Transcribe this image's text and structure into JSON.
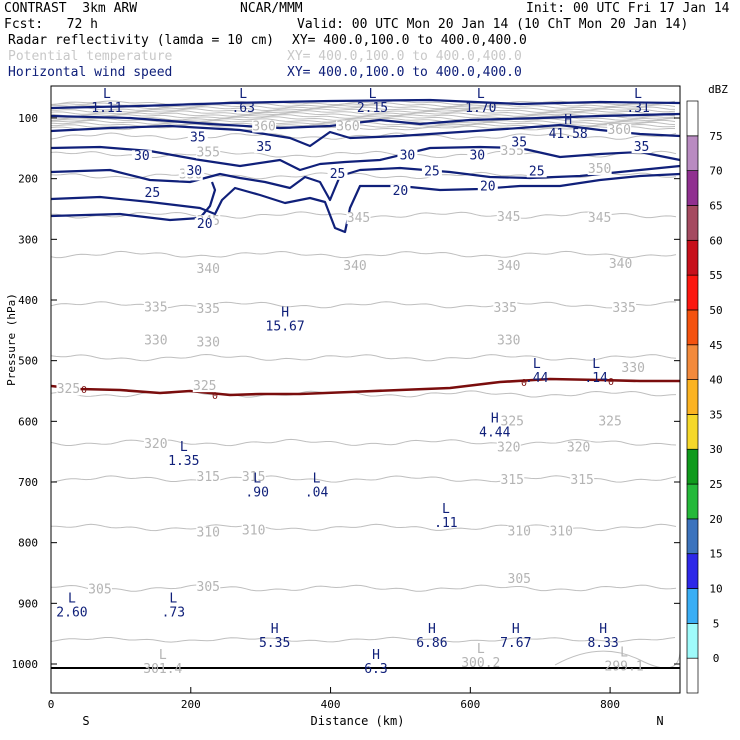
{
  "header": {
    "model": "CONTRAST  3km ARW",
    "center": "NCAR/MMM",
    "init": "Init: 00 UTC Fri 17 Jan 14",
    "fcst": "Fcst:   72 h",
    "valid": "Valid: 00 UTC Mon 20 Jan 14 (10 ChT Mon 20 Jan 14)",
    "fields": [
      {
        "name": "Radar reflectivity (lamda = 10 cm)",
        "xy": "XY= 400.0,100.0 to 400.0,400.0",
        "color": "#000000"
      },
      {
        "name": "Potential temperature",
        "xy": "XY= 400.0,100.0 to 400.0,400.0",
        "color": "#c8c8c8"
      },
      {
        "name": "Horizontal wind speed",
        "xy": "XY= 400.0,100.0 to 400.0,400.0",
        "color": "#10207a"
      }
    ]
  },
  "chart_data": {
    "type": "contour",
    "xlabel": "Distance (km)",
    "ylabel": "Pressure (hPa)",
    "xlim": [
      0,
      900
    ],
    "ylim": [
      1050,
      70
    ],
    "x_ticks": [
      0,
      200,
      400,
      600,
      800
    ],
    "x_tick_labels": [
      "0",
      "200",
      "400",
      "600",
      "800"
    ],
    "y_ticks": [
      100,
      200,
      300,
      400,
      500,
      600,
      700,
      800,
      900,
      1000
    ],
    "y_tick_labels": [
      "100",
      "200",
      "300",
      "400",
      "500",
      "600",
      "700",
      "800",
      "900",
      "1000"
    ],
    "endpoint_labels": [
      "S",
      "N"
    ],
    "colorbar": {
      "unit": "dBZ",
      "levels": [
        "0",
        "5",
        "10",
        "15",
        "20",
        "25",
        "30",
        "35",
        "40",
        "45",
        "50",
        "55",
        "60",
        "65",
        "70",
        "75"
      ],
      "colors": [
        "#ffffff",
        "#9ffbfb",
        "#39aef5",
        "#2d28e8",
        "#3c73bd",
        "#25b93a",
        "#0f9a1c",
        "#f5d82a",
        "#fbb322",
        "#f38a3c",
        "#f4520f",
        "#fb1710",
        "#c7101b",
        "#a54a60",
        "#903090",
        "#b98bc1",
        "#ffffff"
      ]
    },
    "theta_contours": {
      "unit": "K",
      "levels": [
        {
          "value": "360",
          "p": 130
        },
        {
          "value": "355",
          "p": 160
        },
        {
          "value": "350",
          "p": 195
        },
        {
          "value": "345",
          "p": 260
        },
        {
          "value": "340",
          "p": 325
        },
        {
          "value": "335",
          "p": 408
        },
        {
          "value": "330",
          "p": 495
        },
        {
          "value": "325",
          "p": 555
        },
        {
          "value": "320",
          "p": 635
        },
        {
          "value": "315",
          "p": 695
        },
        {
          "value": "310",
          "p": 775
        },
        {
          "value": "305",
          "p": 875
        }
      ],
      "labels": [
        {
          "text": "360",
          "x": 305,
          "p": 114
        },
        {
          "text": "360",
          "x": 425,
          "p": 114
        },
        {
          "text": "360",
          "x": 813,
          "p": 120
        },
        {
          "text": "355",
          "x": 225,
          "p": 157
        },
        {
          "text": "355",
          "x": 660,
          "p": 154
        },
        {
          "text": "350",
          "x": 200,
          "p": 193
        },
        {
          "text": "350",
          "x": 785,
          "p": 184
        },
        {
          "text": "345",
          "x": 225,
          "p": 270
        },
        {
          "text": "345",
          "x": 440,
          "p": 265
        },
        {
          "text": "345",
          "x": 655,
          "p": 263
        },
        {
          "text": "345",
          "x": 785,
          "p": 265
        },
        {
          "text": "340",
          "x": 225,
          "p": 349
        },
        {
          "text": "340",
          "x": 435,
          "p": 344
        },
        {
          "text": "340",
          "x": 655,
          "p": 344
        },
        {
          "text": "340",
          "x": 815,
          "p": 341
        },
        {
          "text": "335",
          "x": 150,
          "p": 412
        },
        {
          "text": "335",
          "x": 225,
          "p": 415
        },
        {
          "text": "335",
          "x": 650,
          "p": 413
        },
        {
          "text": "335",
          "x": 820,
          "p": 413
        },
        {
          "text": "330",
          "x": 150,
          "p": 467
        },
        {
          "text": "330",
          "x": 225,
          "p": 470
        },
        {
          "text": "330",
          "x": 655,
          "p": 467
        },
        {
          "text": "330",
          "x": 833,
          "p": 512
        },
        {
          "text": "325",
          "x": 25,
          "p": 547
        },
        {
          "text": "325",
          "x": 220,
          "p": 542
        },
        {
          "text": "325",
          "x": 660,
          "p": 600
        },
        {
          "text": "325",
          "x": 800,
          "p": 600
        },
        {
          "text": "320",
          "x": 150,
          "p": 637
        },
        {
          "text": "320",
          "x": 655,
          "p": 643
        },
        {
          "text": "320",
          "x": 755,
          "p": 643
        },
        {
          "text": "315",
          "x": 225,
          "p": 692
        },
        {
          "text": "315",
          "x": 290,
          "p": 692
        },
        {
          "text": "315",
          "x": 660,
          "p": 697
        },
        {
          "text": "315",
          "x": 760,
          "p": 697
        },
        {
          "text": "310",
          "x": 225,
          "p": 783
        },
        {
          "text": "310",
          "x": 290,
          "p": 780
        },
        {
          "text": "310",
          "x": 670,
          "p": 782
        },
        {
          "text": "310",
          "x": 730,
          "p": 782
        },
        {
          "text": "305",
          "x": 70,
          "p": 877
        },
        {
          "text": "305",
          "x": 225,
          "p": 873
        },
        {
          "text": "305",
          "x": 670,
          "p": 860
        }
      ]
    },
    "wind_contours": {
      "unit": "m/s",
      "labels": [
        {
          "text": "35",
          "x": 210,
          "p": 132
        },
        {
          "text": "35",
          "x": 305,
          "p": 148
        },
        {
          "text": "35",
          "x": 670,
          "p": 140
        },
        {
          "text": "35",
          "x": 845,
          "p": 148
        },
        {
          "text": "30",
          "x": 130,
          "p": 163
        },
        {
          "text": "30",
          "x": 205,
          "p": 187
        },
        {
          "text": "30",
          "x": 510,
          "p": 162
        },
        {
          "text": "30",
          "x": 610,
          "p": 162
        },
        {
          "text": "25",
          "x": 145,
          "p": 224
        },
        {
          "text": "25",
          "x": 410,
          "p": 192
        },
        {
          "text": "25",
          "x": 545,
          "p": 188
        },
        {
          "text": "25",
          "x": 695,
          "p": 188
        },
        {
          "text": "20",
          "x": 220,
          "p": 275
        },
        {
          "text": "20",
          "x": 500,
          "p": 220
        },
        {
          "text": "20",
          "x": 625,
          "p": 213
        }
      ]
    },
    "freezing_level": {
      "label": "0",
      "p_range": [
        535,
        560
      ]
    },
    "extrema": [
      {
        "type": "L",
        "value": "1.11",
        "x": 80,
        "p": 80
      },
      {
        "type": "L",
        "value": ".63",
        "x": 275,
        "p": 80
      },
      {
        "type": "L",
        "value": "2.15",
        "x": 460,
        "p": 80
      },
      {
        "type": "L",
        "value": "1.70",
        "x": 615,
        "p": 80
      },
      {
        "type": "L",
        "value": ".31",
        "x": 840,
        "p": 80
      },
      {
        "type": "H",
        "value": "41.58",
        "x": 740,
        "p": 123
      },
      {
        "type": "H",
        "value": "15.67",
        "x": 335,
        "p": 440
      },
      {
        "type": "L",
        "value": ".44",
        "x": 695,
        "p": 525
      },
      {
        "type": "L",
        "value": ".14",
        "x": 780,
        "p": 525
      },
      {
        "type": "H",
        "value": "4.44",
        "x": 635,
        "p": 615
      },
      {
        "type": "L",
        "value": "1.35",
        "x": 190,
        "p": 662
      },
      {
        "type": "L",
        "value": ".90",
        "x": 295,
        "p": 714
      },
      {
        "type": "L",
        "value": ".04",
        "x": 380,
        "p": 714
      },
      {
        "type": "L",
        "value": ".11",
        "x": 565,
        "p": 764
      },
      {
        "type": "L",
        "value": "2.60",
        "x": 30,
        "p": 912
      },
      {
        "type": "L",
        "value": ".73",
        "x": 175,
        "p": 912
      },
      {
        "type": "H",
        "value": "5.35",
        "x": 320,
        "p": 962
      },
      {
        "type": "H",
        "value": "6.86",
        "x": 545,
        "p": 962
      },
      {
        "type": "H",
        "value": "7.67",
        "x": 665,
        "p": 962
      },
      {
        "type": "H",
        "value": "8.33",
        "x": 790,
        "p": 962
      },
      {
        "type": "H",
        "value": "6.3",
        "x": 465,
        "p": 1005
      },
      {
        "type": "L",
        "value": "301.4",
        "x": 160,
        "p": 1005
      },
      {
        "type": "L",
        "value": "300.2",
        "x": 615,
        "p": 995
      },
      {
        "type": "L",
        "value": "299.1",
        "x": 820,
        "p": 1001
      }
    ]
  }
}
